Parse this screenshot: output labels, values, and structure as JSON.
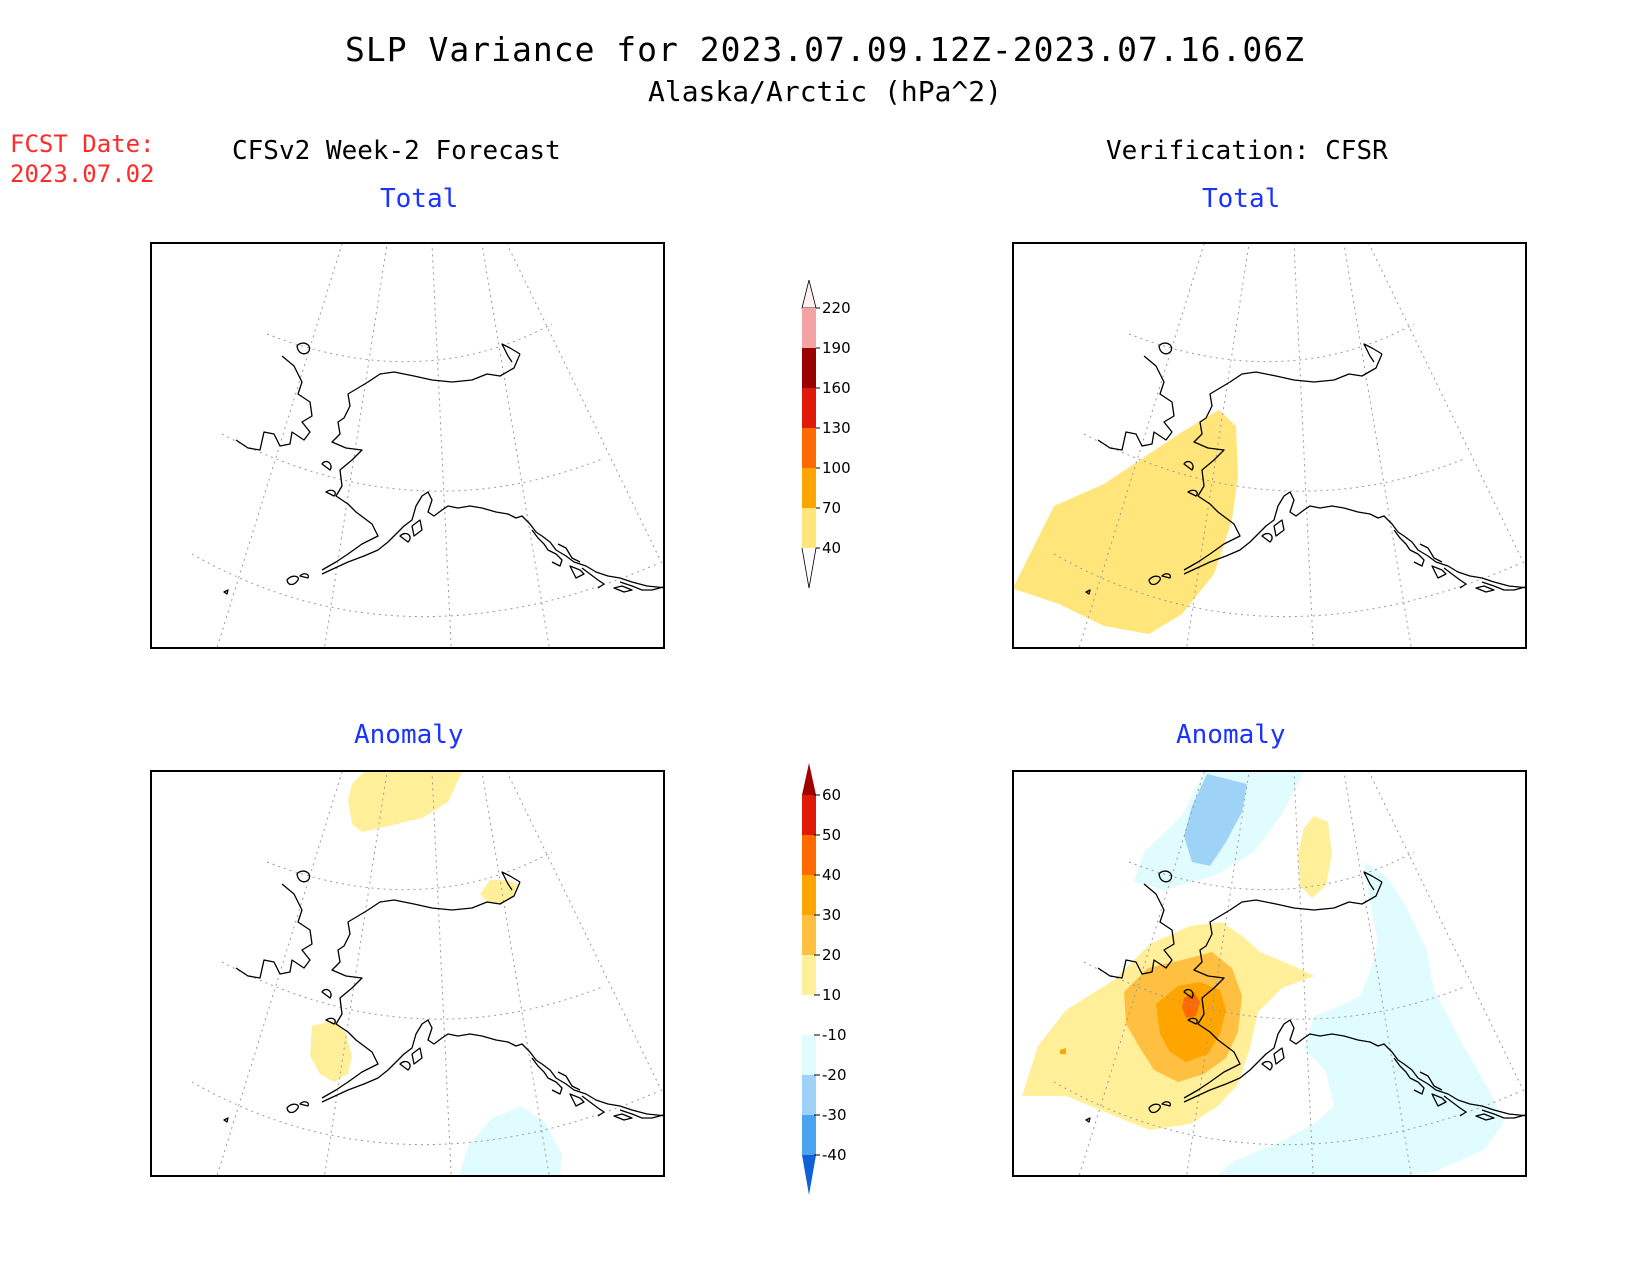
{
  "header": {
    "title": "SLP Variance for 2023.07.09.12Z-2023.07.16.06Z",
    "subtitle": "Alaska/Arctic (hPa^2)",
    "fcst_label": "FCST Date:",
    "fcst_date": "2023.07.02"
  },
  "columns": {
    "left": "CFSv2 Week-2 Forecast",
    "right": "Verification: CFSR"
  },
  "panels": {
    "forecast_total": "Total",
    "verify_total": "Total",
    "forecast_anomaly": "Anomaly",
    "verify_anomaly": "Anomaly"
  },
  "colorbars": {
    "total": {
      "ticks": [
        "220",
        "190",
        "160",
        "130",
        "100",
        "70",
        "40"
      ],
      "colors": [
        "#fff1ee",
        "#f4a3a3",
        "#9b0000",
        "#e01a08",
        "#ff6a00",
        "#ffa500",
        "#ffe57a"
      ]
    },
    "anomaly": {
      "ticks": [
        "60",
        "50",
        "40",
        "30",
        "20",
        "10",
        "-10",
        "-20",
        "-30",
        "-40"
      ],
      "colors_pos": [
        "#a10000",
        "#e01a08",
        "#ff6a00",
        "#ffa500",
        "#ffbf40",
        "#ffef99",
        "#ffffff"
      ],
      "colors_neg": [
        "#ffffff",
        "#e0fcff",
        "#9ed2f7",
        "#4aa4f0",
        "#1060d8"
      ]
    }
  },
  "colors": {
    "title_text": "#000000",
    "fcst_text": "#ff2a2a",
    "panel_label": "#1a33ff"
  }
}
